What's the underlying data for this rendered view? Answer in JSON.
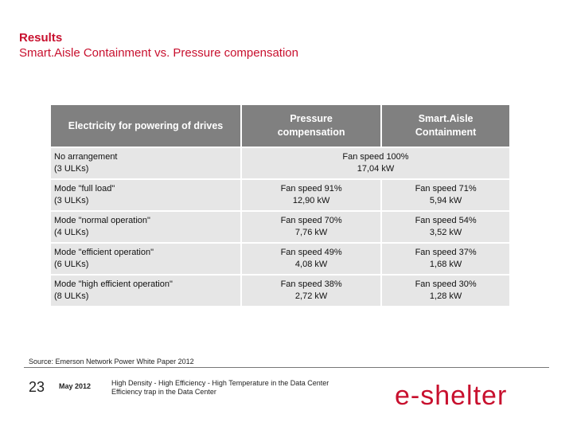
{
  "title": {
    "line1": "Results",
    "line2": "Smart.Aisle Containment vs. Pressure compensation"
  },
  "table": {
    "headers": [
      "Electricity for powering of drives",
      "Pressure\ncompensation",
      "Smart.Aisle\nContainment"
    ],
    "merged_row": {
      "label_line1": "No arrangement",
      "label_line2": "(3 ULKs)",
      "value_line1": "Fan speed 100%",
      "value_line2": "17,04 kW"
    },
    "rows": [
      {
        "label_line1": "Mode \"full load\"",
        "label_line2": "(3 ULKs)",
        "pressure_line1": "Fan speed 91%",
        "pressure_line2": "12,90 kW",
        "smart_line1": "Fan speed 71%",
        "smart_line2": "5,94 kW"
      },
      {
        "label_line1": "Mode \"normal operation\"",
        "label_line2": "(4 ULKs)",
        "pressure_line1": "Fan speed 70%",
        "pressure_line2": "7,76 kW",
        "smart_line1": "Fan speed 54%",
        "smart_line2": "3,52 kW"
      },
      {
        "label_line1": "Mode \"efficient operation\"",
        "label_line2": "(6 ULKs)",
        "pressure_line1": "Fan speed 49%",
        "pressure_line2": "4,08 kW",
        "smart_line1": "Fan speed 37%",
        "smart_line2": "1,68 kW"
      },
      {
        "label_line1": "Mode \"high efficient operation\"",
        "label_line2": "(8 ULKs)",
        "pressure_line1": "Fan speed 38%",
        "pressure_line2": "2,72 kW",
        "smart_line1": "Fan speed 30%",
        "smart_line2": "1,28 kW"
      }
    ]
  },
  "source": "Source: Emerson Network Power White Paper 2012",
  "footer": {
    "page_number": "23",
    "date": "May 2012",
    "line1": "High Density - High Efficiency - High Temperature in the Data Center",
    "line2": "Efficiency trap in the Data Center",
    "logo_text": "e-shelter"
  },
  "colors": {
    "accent_red": "#c8102e",
    "header_gray": "#808080",
    "cell_gray": "#e6e6e6"
  }
}
